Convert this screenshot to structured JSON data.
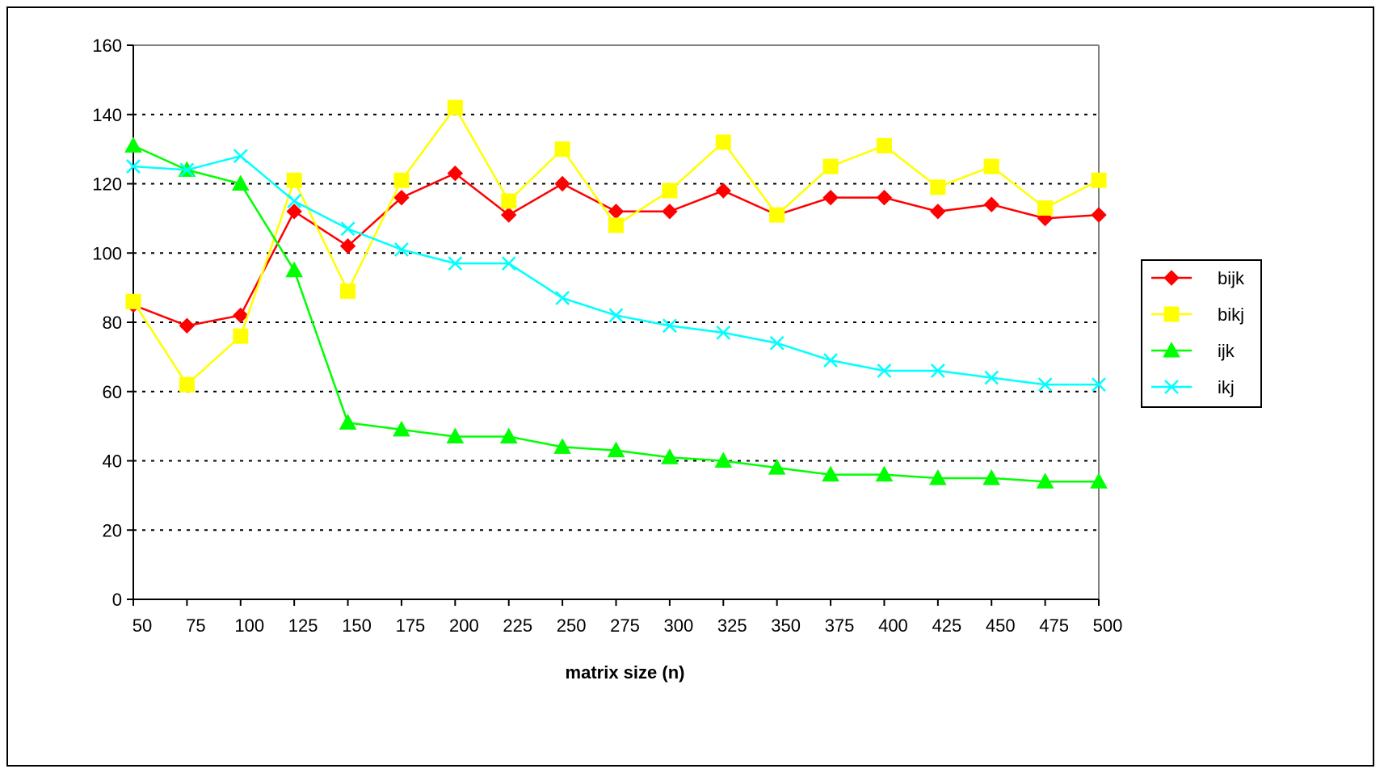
{
  "chart_data": {
    "type": "line",
    "title": "",
    "xlabel": "matrix size (n)",
    "ylabel": "",
    "ylim": [
      0,
      160
    ],
    "yticks": [
      0,
      20,
      40,
      60,
      80,
      100,
      120,
      140,
      160
    ],
    "grid": "dotted horizontal gridlines",
    "legend_position": "right",
    "categories": [
      "50",
      "75",
      "100",
      "125",
      "150",
      "175",
      "200",
      "225",
      "250",
      "275",
      "300",
      "325",
      "350",
      "375",
      "400",
      "425",
      "450",
      "475",
      "500"
    ],
    "series": [
      {
        "name": "bijk",
        "color": "#ff0000",
        "marker": "diamond",
        "values": [
          85,
          79,
          82,
          112,
          102,
          116,
          123,
          111,
          120,
          112,
          112,
          118,
          111,
          116,
          116,
          112,
          114,
          110,
          111
        ]
      },
      {
        "name": "bikj",
        "color": "#ffff00",
        "marker": "square",
        "values": [
          86,
          62,
          76,
          121,
          89,
          121,
          142,
          115,
          130,
          108,
          118,
          132,
          111,
          125,
          131,
          119,
          125,
          113,
          121
        ]
      },
      {
        "name": "ijk",
        "color": "#00ff00",
        "marker": "triangle",
        "values": [
          131,
          124,
          120,
          95,
          51,
          49,
          47,
          47,
          44,
          43,
          41,
          40,
          38,
          36,
          36,
          35,
          35,
          34,
          34
        ]
      },
      {
        "name": "ikj",
        "color": "#00ffff",
        "marker": "x",
        "values": [
          125,
          124,
          128,
          115,
          107,
          101,
          97,
          97,
          87,
          82,
          79,
          77,
          74,
          69,
          66,
          66,
          64,
          62,
          62
        ]
      }
    ]
  }
}
